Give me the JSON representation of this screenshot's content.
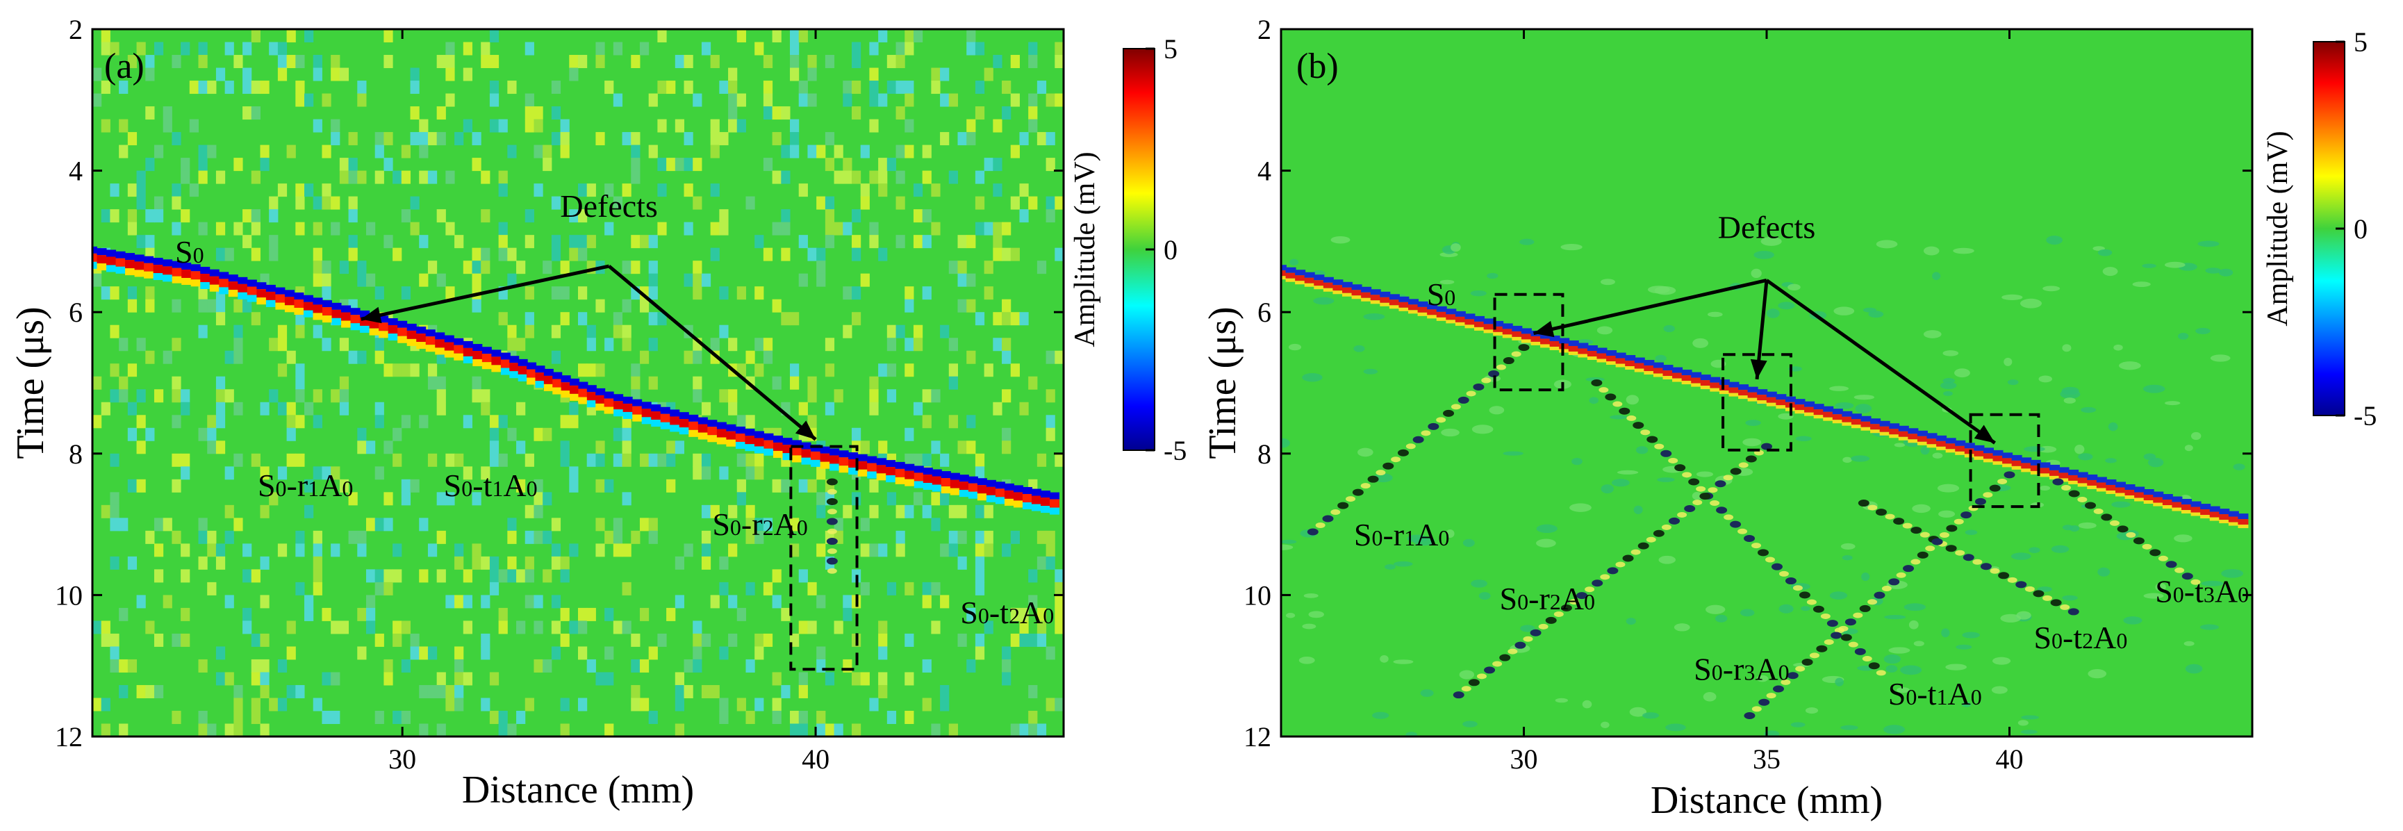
{
  "chart_data": [
    {
      "type": "heatmap",
      "panel_label": "(a)",
      "xlabel": "Distance (mm)",
      "ylabel": "Time (μs)",
      "xlim": [
        22.5,
        46
      ],
      "ylim": [
        12,
        2
      ],
      "x_ticks": [
        30,
        40
      ],
      "y_ticks": [
        2,
        4,
        6,
        8,
        10,
        12
      ],
      "colorbar": {
        "label": "Amplitude (mV)",
        "range": [
          -5,
          5
        ],
        "ticks": [
          5,
          0,
          -5
        ]
      },
      "mode_fronts": [
        {
          "name": "S0",
          "points": [
            [
              22.5,
              5.25
            ],
            [
              25,
              5.5
            ],
            [
              27.5,
              5.9
            ],
            [
              30,
              6.3
            ],
            [
              32.5,
              6.75
            ],
            [
              35,
              7.3
            ],
            [
              37.5,
              7.7
            ],
            [
              40,
              8.05
            ],
            [
              42.5,
              8.35
            ],
            [
              46,
              8.75
            ]
          ]
        },
        {
          "name": "S0-r2A0",
          "points": [
            [
              40.4,
              8.4
            ],
            [
              40.4,
              9.8
            ]
          ]
        }
      ],
      "annotations": [
        {
          "text": "Defects",
          "x": 35.0,
          "y": 4.65
        },
        {
          "text": "S0",
          "x": 24.5,
          "y": 5.3
        },
        {
          "text": "S0-r1A0",
          "x": 26.5,
          "y": 8.6
        },
        {
          "text": "S0-t1A0",
          "x": 31.0,
          "y": 8.6
        },
        {
          "text": "S0-r2A0",
          "x": 37.5,
          "y": 9.15
        },
        {
          "text": "S0-t2A0",
          "x": 43.5,
          "y": 10.4
        }
      ],
      "arrows": [
        {
          "from": [
            35.0,
            5.35
          ],
          "to": [
            29.0,
            6.1
          ]
        },
        {
          "from": [
            35.0,
            5.35
          ],
          "to": [
            40.0,
            7.8
          ]
        }
      ],
      "defect_boxes": [
        {
          "x": [
            39.4,
            41.0
          ],
          "y": [
            7.9,
            11.05
          ]
        }
      ]
    },
    {
      "type": "heatmap",
      "panel_label": "(b)",
      "xlabel": "Distance (mm)",
      "ylabel": "Time (μs)",
      "xlim": [
        25,
        45
      ],
      "ylim": [
        12,
        2
      ],
      "x_ticks": [
        30,
        35,
        40
      ],
      "y_ticks": [
        2,
        4,
        6,
        8,
        10,
        12
      ],
      "colorbar": {
        "label": "Amplitude (mV)",
        "range": [
          -5,
          5
        ],
        "ticks": [
          5,
          0,
          -5
        ]
      },
      "mode_fronts": [
        {
          "name": "S0",
          "points": [
            [
              25,
              5.45
            ],
            [
              45,
              9.0
            ]
          ]
        },
        {
          "name": "S0-r1A0",
          "points": [
            [
              30,
              6.5
            ],
            [
              25.5,
              9.2
            ]
          ]
        },
        {
          "name": "S0-t1A0",
          "points": [
            [
              31.5,
              7.0
            ],
            [
              37.5,
              11.2
            ]
          ]
        },
        {
          "name": "S0-r2A0",
          "points": [
            [
              35,
              7.9
            ],
            [
              28.5,
              11.5
            ]
          ]
        },
        {
          "name": "S0-t2A0",
          "points": [
            [
              37.0,
              8.7
            ],
            [
              41.5,
              10.3
            ]
          ]
        },
        {
          "name": "S0-r3A0",
          "points": [
            [
              40,
              8.3
            ],
            [
              34.5,
              11.8
            ]
          ]
        },
        {
          "name": "S0-t3A0",
          "points": [
            [
              41,
              8.4
            ],
            [
              44,
              9.9
            ]
          ]
        }
      ],
      "annotations": [
        {
          "text": "Defects",
          "x": 35.0,
          "y": 4.95
        },
        {
          "text": "S0",
          "x": 28.0,
          "y": 5.9
        },
        {
          "text": "S0-r1A0",
          "x": 26.5,
          "y": 9.3
        },
        {
          "text": "S0-r2A0",
          "x": 29.5,
          "y": 10.2
        },
        {
          "text": "S0-r3A0",
          "x": 33.5,
          "y": 11.2
        },
        {
          "text": "S0-t1A0",
          "x": 37.5,
          "y": 11.55
        },
        {
          "text": "S0-t2A0",
          "x": 40.5,
          "y": 10.75
        },
        {
          "text": "S0-t3A0",
          "x": 43.0,
          "y": 10.1
        }
      ],
      "arrows": [
        {
          "from": [
            35.0,
            5.55
          ],
          "to": [
            30.2,
            6.3
          ]
        },
        {
          "from": [
            35.0,
            5.55
          ],
          "to": [
            34.8,
            6.95
          ]
        },
        {
          "from": [
            35.0,
            5.55
          ],
          "to": [
            39.7,
            7.85
          ]
        }
      ],
      "defect_boxes": [
        {
          "x": [
            29.4,
            30.8
          ],
          "y": [
            5.75,
            7.1
          ]
        },
        {
          "x": [
            34.1,
            35.5
          ],
          "y": [
            6.6,
            7.95
          ]
        },
        {
          "x": [
            39.2,
            40.6
          ],
          "y": [
            7.45,
            8.75
          ]
        }
      ]
    }
  ]
}
